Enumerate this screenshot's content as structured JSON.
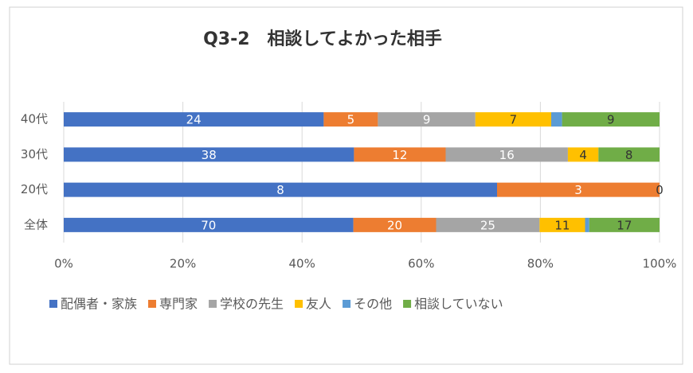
{
  "chart_data": {
    "type": "bar",
    "orientation": "horizontal",
    "stacked": "percent",
    "title": "Q3-2　相談してよかった相手",
    "categories": [
      "40代",
      "30代",
      "20代",
      "全体"
    ],
    "series": [
      {
        "name": "配偶者・家族",
        "color": "#4472c4",
        "label_color": "#ffffff",
        "values": [
          24,
          38,
          8,
          70
        ]
      },
      {
        "name": "専門家",
        "color": "#ed7d31",
        "label_color": "#ffffff",
        "values": [
          5,
          12,
          3,
          20
        ]
      },
      {
        "name": "学校の先生",
        "color": "#a5a5a5",
        "label_color": "#ffffff",
        "values": [
          9,
          16,
          0,
          25
        ],
        "value_labels": [
          "9",
          "16",
          null,
          "25"
        ]
      },
      {
        "name": "友人",
        "color": "#ffc000",
        "label_color": "#333333",
        "values": [
          7,
          4,
          0,
          11
        ],
        "value_labels": [
          "7",
          "4",
          null,
          "11"
        ]
      },
      {
        "name": "その他",
        "color": "#5b9bd5",
        "label_color": "#333333",
        "values": [
          1,
          0,
          0,
          1
        ],
        "data_labels": false
      },
      {
        "name": "相談していない",
        "color": "#70ad47",
        "label_color": "#333333",
        "values": [
          9,
          8,
          0,
          17
        ]
      }
    ],
    "xlim": [
      0,
      100
    ],
    "xticks": [
      {
        "value": 0,
        "label": "0%"
      },
      {
        "value": 20,
        "label": "20%"
      },
      {
        "value": 40,
        "label": "40%"
      },
      {
        "value": 60,
        "label": "60%"
      },
      {
        "value": 80,
        "label": "80%"
      },
      {
        "value": 100,
        "label": "100%"
      }
    ],
    "grid": true,
    "legend": "bottom"
  }
}
